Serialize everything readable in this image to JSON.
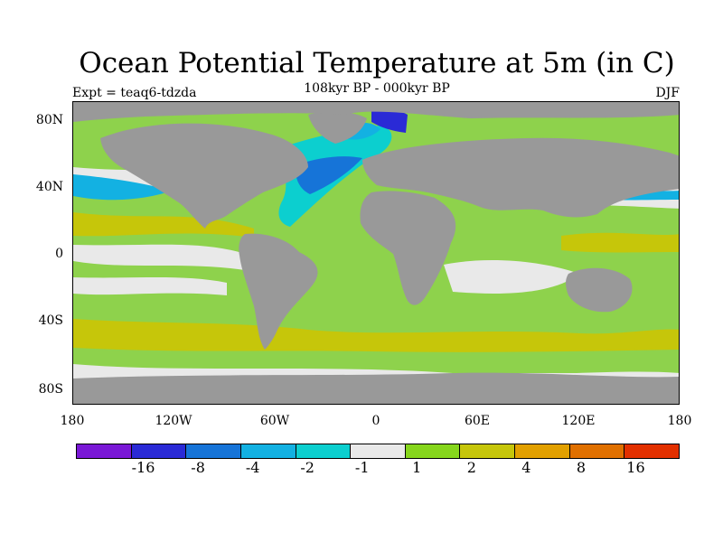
{
  "title": "Ocean Potential Temperature at 5m (in C)",
  "subtitle": "108kyr BP - 000kyr BP",
  "experiment": "Expt = teaq6-tdzda",
  "season": "DJF",
  "latitude_labels": [
    "80N",
    "40N",
    "0",
    "40S",
    "80S"
  ],
  "longitude_labels": [
    "180",
    "120W",
    "60W",
    "0",
    "60E",
    "120E",
    "180"
  ],
  "colorbar": {
    "colors": [
      "#7a18d6",
      "#2a2ad6",
      "#1674d8",
      "#13b1e2",
      "#0ccfcf",
      "#e9e9e9",
      "#86d61c",
      "#c6c60a",
      "#e2a000",
      "#e07000",
      "#e33000"
    ],
    "labels": [
      "-16",
      "-8",
      "-4",
      "-2",
      "-1",
      "1",
      "2",
      "4",
      "8",
      "16"
    ]
  },
  "land_color": "#999999",
  "ocean_base_color": "#8ed24c"
}
